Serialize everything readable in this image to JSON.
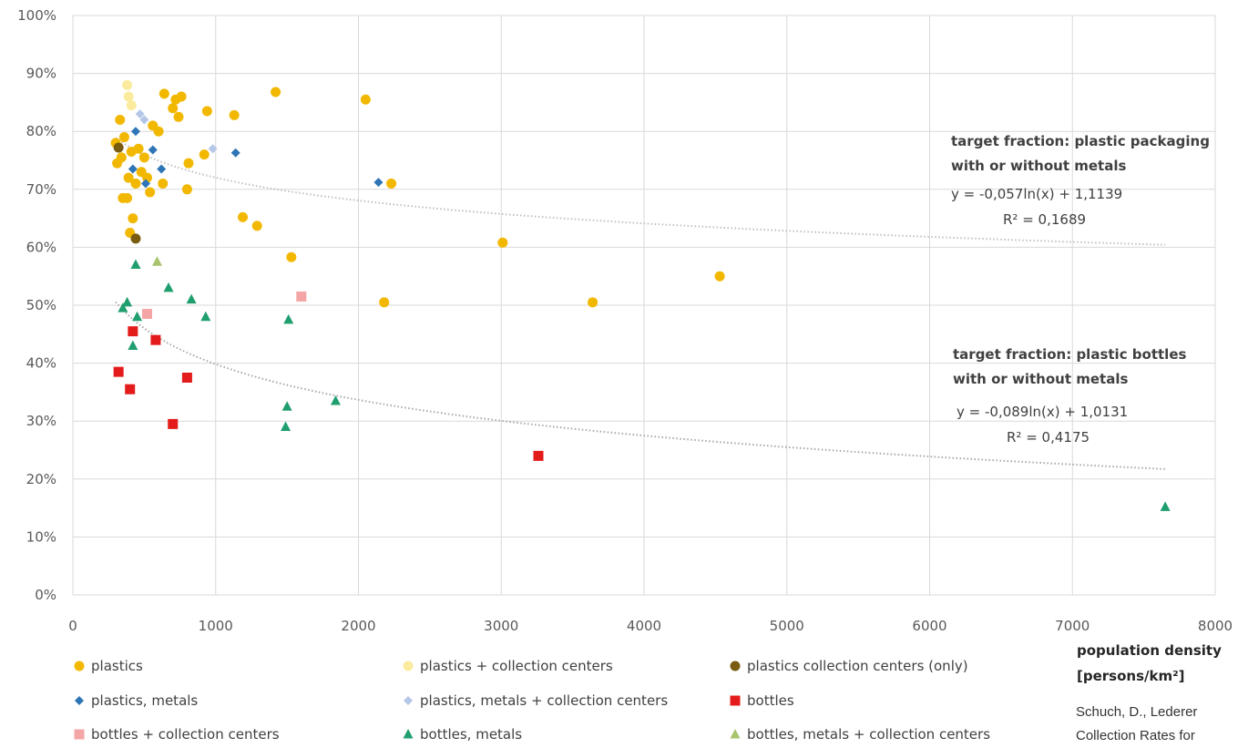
{
  "chart_data": {
    "type": "scatter",
    "xlabel": [
      "population density",
      "[persons/km²]"
    ],
    "ylabel": "",
    "xlim": [
      0,
      8000
    ],
    "ylim": [
      0,
      1
    ],
    "x_ticks": [
      "0",
      "1000",
      "2000",
      "3000",
      "4000",
      "5000",
      "6000",
      "7000",
      "8000"
    ],
    "y_ticks": [
      "0%",
      "10%",
      "20%",
      "30%",
      "40%",
      "50%",
      "60%",
      "70%",
      "80%",
      "90%",
      "100%"
    ],
    "grid": true,
    "legend_position": "bottom",
    "series": [
      {
        "name": "plastics",
        "marker": "circle",
        "color": "#F2B800",
        "points": [
          [
            300,
            0.78
          ],
          [
            310,
            0.745
          ],
          [
            330,
            0.82
          ],
          [
            340,
            0.755
          ],
          [
            350,
            0.685
          ],
          [
            360,
            0.79
          ],
          [
            380,
            0.685
          ],
          [
            390,
            0.72
          ],
          [
            400,
            0.625
          ],
          [
            410,
            0.765
          ],
          [
            420,
            0.65
          ],
          [
            440,
            0.71
          ],
          [
            460,
            0.77
          ],
          [
            480,
            0.73
          ],
          [
            500,
            0.755
          ],
          [
            520,
            0.72
          ],
          [
            540,
            0.695
          ],
          [
            560,
            0.81
          ],
          [
            600,
            0.8
          ],
          [
            630,
            0.71
          ],
          [
            640,
            0.865
          ],
          [
            700,
            0.84
          ],
          [
            720,
            0.855
          ],
          [
            740,
            0.825
          ],
          [
            760,
            0.86
          ],
          [
            800,
            0.7
          ],
          [
            810,
            0.745
          ],
          [
            920,
            0.76
          ],
          [
            940,
            0.835
          ],
          [
            1130,
            0.828
          ],
          [
            1190,
            0.652
          ],
          [
            1290,
            0.637
          ],
          [
            1420,
            0.868
          ],
          [
            1530,
            0.583
          ],
          [
            2050,
            0.855
          ],
          [
            2180,
            0.505
          ],
          [
            2230,
            0.71
          ],
          [
            3010,
            0.608
          ],
          [
            3640,
            0.505
          ],
          [
            4530,
            0.55
          ]
        ]
      },
      {
        "name": "plastics + collection centers",
        "marker": "circle",
        "color": "#FAEB9E",
        "points": [
          [
            380,
            0.88
          ],
          [
            390,
            0.86
          ],
          [
            410,
            0.845
          ]
        ]
      },
      {
        "name": "plastics collection centers (only)",
        "marker": "circle",
        "color": "#7A5C10",
        "points": [
          [
            320,
            0.772
          ],
          [
            440,
            0.615
          ]
        ]
      },
      {
        "name": "plastics, metals",
        "marker": "diamond",
        "color": "#2E75B6",
        "points": [
          [
            420,
            0.735
          ],
          [
            440,
            0.8
          ],
          [
            510,
            0.71
          ],
          [
            560,
            0.768
          ],
          [
            620,
            0.735
          ],
          [
            1140,
            0.763
          ],
          [
            2140,
            0.712
          ]
        ]
      },
      {
        "name": "plastics, metals + collection centers",
        "marker": "diamond",
        "color": "#B4C7E7",
        "points": [
          [
            470,
            0.83
          ],
          [
            500,
            0.82
          ],
          [
            980,
            0.77
          ]
        ]
      },
      {
        "name": "bottles",
        "marker": "square",
        "color": "#E41B1B",
        "points": [
          [
            320,
            0.385
          ],
          [
            400,
            0.355
          ],
          [
            420,
            0.455
          ],
          [
            580,
            0.44
          ],
          [
            700,
            0.295
          ],
          [
            800,
            0.375
          ],
          [
            3260,
            0.24
          ]
        ]
      },
      {
        "name": "bottles + collection centers",
        "marker": "square",
        "color": "#F4A6A6",
        "points": [
          [
            520,
            0.485
          ],
          [
            1600,
            0.515
          ]
        ]
      },
      {
        "name": "bottles, metals",
        "marker": "triangle",
        "color": "#1F9E6E",
        "points": [
          [
            350,
            0.495
          ],
          [
            380,
            0.505
          ],
          [
            420,
            0.43
          ],
          [
            440,
            0.57
          ],
          [
            450,
            0.48
          ],
          [
            670,
            0.53
          ],
          [
            830,
            0.51
          ],
          [
            930,
            0.48
          ],
          [
            1490,
            0.29
          ],
          [
            1500,
            0.325
          ],
          [
            1510,
            0.475
          ],
          [
            1840,
            0.335
          ],
          [
            7650,
            0.152
          ]
        ]
      },
      {
        "name": "bottles, metals + collection centers",
        "marker": "triangle",
        "color": "#A9C46C",
        "points": [
          [
            590,
            0.575
          ]
        ]
      }
    ],
    "trendlines": [
      {
        "a": -0.057,
        "b": 1.1139,
        "x_from": 300,
        "x_to": 7650,
        "color": "#C0C0C0"
      },
      {
        "a": -0.089,
        "b": 1.0131,
        "x_from": 300,
        "x_to": 7650,
        "color": "#A8A8A8"
      }
    ],
    "annotations": [
      {
        "lines": [
          "target fraction: plastic packaging",
          "with or without metals"
        ],
        "bold": true
      },
      {
        "lines": [
          "y = -0,057ln(x) + 1,1139",
          "R² = 0,1689"
        ],
        "bold": false
      },
      {
        "lines": [
          "target fraction: plastic bottles",
          "with or without metals"
        ],
        "bold": true
      },
      {
        "lines": [
          "y = -0,089ln(x) + 1,0131",
          "R² = 0,4175"
        ],
        "bold": false
      }
    ]
  },
  "source_text": [
    "Schuch, D., Lederer",
    "Collection Rates for"
  ]
}
